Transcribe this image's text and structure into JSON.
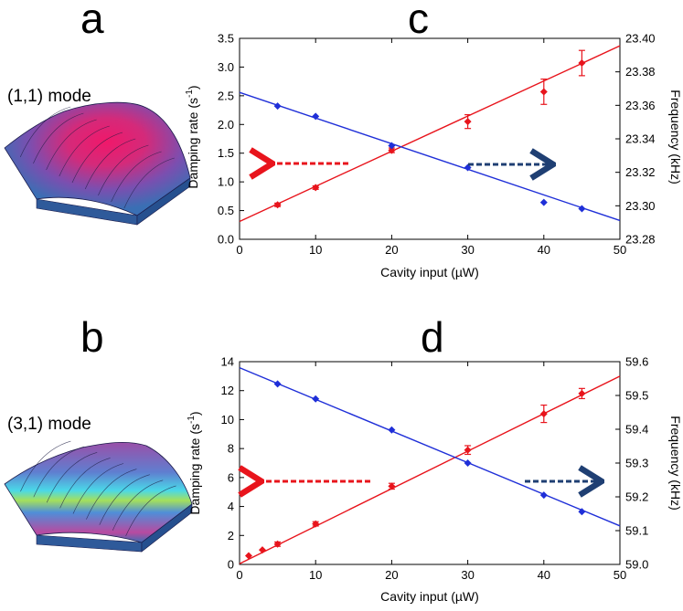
{
  "panels": {
    "a": {
      "letter": "a",
      "mode_label": "(1,1) mode"
    },
    "b": {
      "letter": "b",
      "mode_label": "(3,1) mode"
    },
    "c": {
      "letter": "c"
    },
    "d": {
      "letter": "d"
    }
  },
  "colors": {
    "damping": "#e8141c",
    "frequency": "#1f2fd8",
    "arrow_damping": "#e8141c",
    "arrow_frequency": "#1f3f73",
    "surface_base": "#3a6fb4",
    "surface_hot_11": "#e0205a",
    "surface_blue_31": "#46e0e8",
    "surface_green_31": "#9be05a",
    "surface_magenta_31": "#c04a9a"
  },
  "chart_data": [
    {
      "id": "c",
      "type": "scatter",
      "xlabel": "Cavity input (µW)",
      "ylabel_left": "Damping rate (s",
      "ylabel_left_sup": "-1",
      "ylabel_left_close": ")",
      "ylabel_right": "Frequency (kHz)",
      "xlim": [
        0,
        50
      ],
      "xticks": [
        "0",
        "10",
        "20",
        "30",
        "40",
        "50"
      ],
      "ylim_left": [
        0,
        3.5
      ],
      "yticks_left": [
        "0.0",
        "0.5",
        "1.0",
        "1.5",
        "2.0",
        "2.5",
        "3.0",
        "3.5"
      ],
      "ylim_right": [
        23.28,
        23.4
      ],
      "yticks_right": [
        "23.28",
        "23.30",
        "23.32",
        "23.34",
        "23.36",
        "23.38",
        "23.40"
      ],
      "series": [
        {
          "axis": "left",
          "x": [
            5,
            10,
            20,
            30,
            40,
            45
          ],
          "y": [
            0.6,
            0.9,
            1.55,
            2.05,
            2.57,
            3.07
          ],
          "err": [
            0.03,
            0.03,
            0.04,
            0.12,
            0.22,
            0.22
          ],
          "fit": {
            "slope": 0.0612,
            "intercept": 0.31
          }
        },
        {
          "axis": "right",
          "x": [
            5,
            10,
            20,
            30,
            40,
            45
          ],
          "y": [
            23.3596,
            23.3534,
            23.3359,
            23.3228,
            23.302,
            23.2983
          ],
          "fit": {
            "slope": -0.00153,
            "intercept": 23.3677
          }
        }
      ]
    },
    {
      "id": "d",
      "type": "scatter",
      "xlabel": "Cavity input (µW)",
      "ylabel_left": "Damping rate (s",
      "ylabel_left_sup": "-1",
      "ylabel_left_close": ")",
      "ylabel_right": "Frequency (kHz)",
      "xlim": [
        0,
        50
      ],
      "xticks": [
        "0",
        "10",
        "20",
        "30",
        "40",
        "50"
      ],
      "ylim_left": [
        0,
        14
      ],
      "yticks_left": [
        "0",
        "2",
        "4",
        "6",
        "8",
        "10",
        "12",
        "14"
      ],
      "ylim_right": [
        59.0,
        59.6
      ],
      "yticks_right": [
        "59.0",
        "59.1",
        "59.2",
        "59.3",
        "59.4",
        "59.5",
        "59.6"
      ],
      "series": [
        {
          "axis": "left",
          "x": [
            1.2,
            3,
            5,
            10,
            20,
            30,
            40,
            45
          ],
          "y": [
            0.6,
            1.0,
            1.4,
            2.8,
            5.4,
            7.9,
            10.4,
            11.8
          ],
          "err": [
            0.05,
            0.05,
            0.15,
            0.15,
            0.2,
            0.3,
            0.6,
            0.35
          ],
          "fit": {
            "slope": 0.259,
            "intercept": 0.05
          }
        },
        {
          "axis": "right",
          "x": [
            5,
            10,
            20,
            30,
            40,
            45
          ],
          "y": [
            59.534,
            59.49,
            59.398,
            59.3,
            59.205,
            59.156
          ],
          "fit": {
            "slope": -0.00936,
            "intercept": 59.582
          }
        }
      ]
    }
  ]
}
